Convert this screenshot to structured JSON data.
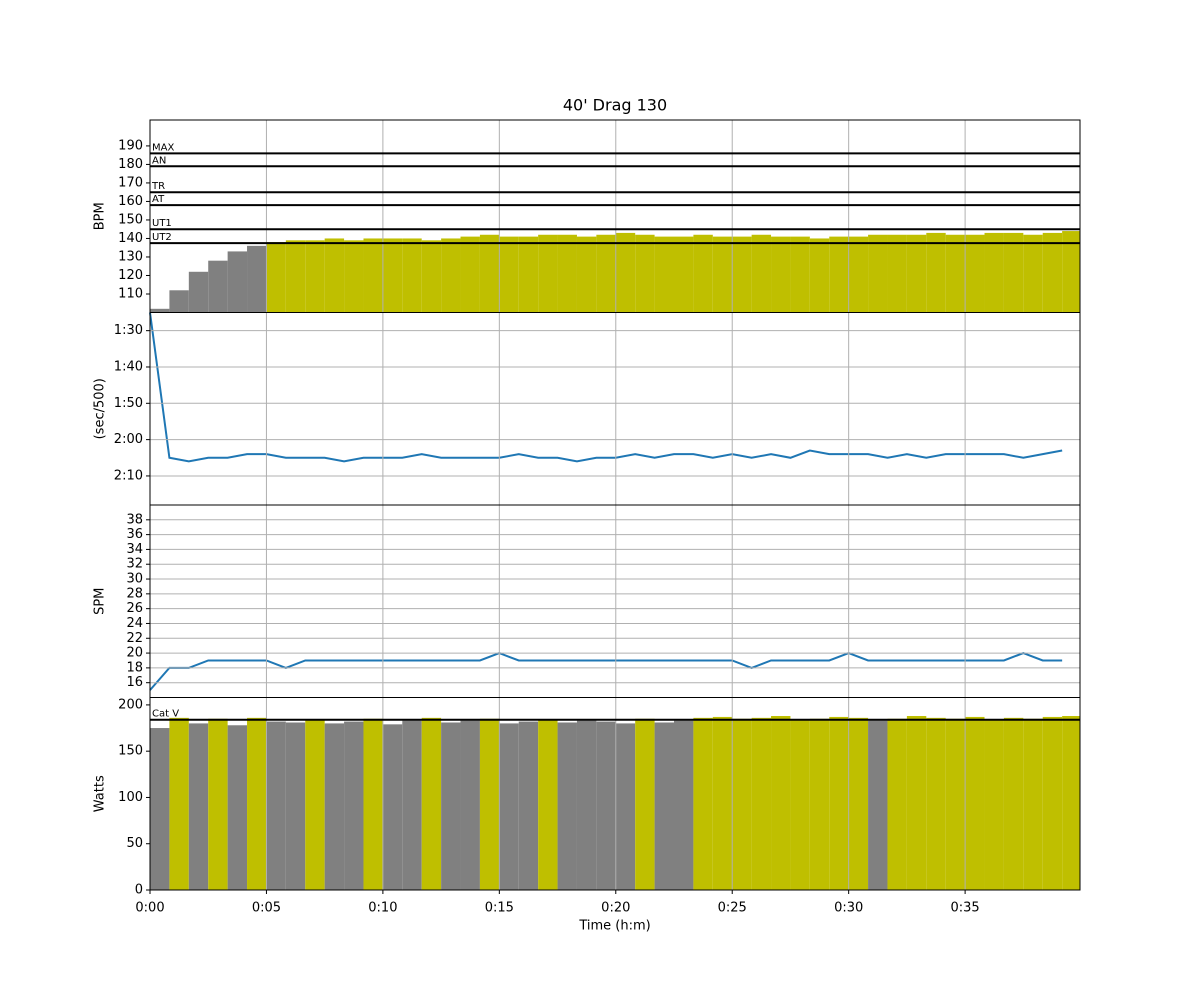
{
  "chart_data": [
    {
      "type": "bar",
      "title": "40' Drag 130",
      "ylabel": "BPM",
      "ylim": [
        100,
        204
      ],
      "yticks": [
        110,
        120,
        130,
        140,
        150,
        160,
        170,
        180,
        190
      ],
      "xlim": [
        0,
        2396
      ],
      "xticks": [
        {
          "value": 0,
          "label": "0:00"
        },
        {
          "value": 300,
          "label": "0:05"
        },
        {
          "value": 600,
          "label": "0:10"
        },
        {
          "value": 900,
          "label": "0:15"
        },
        {
          "value": 1200,
          "label": "0:20"
        },
        {
          "value": 1500,
          "label": "0:25"
        },
        {
          "value": 1800,
          "label": "0:30"
        },
        {
          "value": 2100,
          "label": "0:35"
        }
      ],
      "grid": "x",
      "color_below": "#808080",
      "color_above": "#bfbf00",
      "threshold_zone": 0,
      "zones": [
        {
          "name": "UT2",
          "value": 137.5
        },
        {
          "name": "UT1",
          "value": 145
        },
        {
          "name": "AT",
          "value": 158
        },
        {
          "name": "TR",
          "value": 165
        },
        {
          "name": "AN",
          "value": 179
        },
        {
          "name": "MAX",
          "value": 186
        }
      ],
      "x": [
        0,
        50,
        100,
        150,
        200,
        250,
        300,
        350,
        400,
        450,
        500,
        550,
        600,
        650,
        700,
        750,
        800,
        850,
        900,
        950,
        1000,
        1050,
        1100,
        1150,
        1200,
        1250,
        1300,
        1350,
        1400,
        1450,
        1500,
        1550,
        1600,
        1650,
        1700,
        1750,
        1800,
        1850,
        1900,
        1950,
        2000,
        2050,
        2100,
        2150,
        2200,
        2250,
        2300,
        2350
      ],
      "values": [
        102,
        112,
        122,
        128,
        133,
        136,
        138,
        139,
        139,
        140,
        139,
        140,
        140,
        140,
        139,
        140,
        141,
        142,
        141,
        141,
        142,
        142,
        141,
        142,
        143,
        142,
        141,
        141,
        142,
        141,
        141,
        142,
        141,
        141,
        140,
        141,
        141,
        142,
        142,
        142,
        143,
        142,
        142,
        143,
        143,
        142,
        143,
        144
      ]
    },
    {
      "type": "line",
      "ylabel": "(sec/500)",
      "ylim": [
        138,
        85
      ],
      "yticks": [
        {
          "value": 90,
          "label": "1:30"
        },
        {
          "value": 100,
          "label": "1:40"
        },
        {
          "value": 110,
          "label": "1:50"
        },
        {
          "value": 120,
          "label": "2:00"
        },
        {
          "value": 130,
          "label": "2:10"
        }
      ],
      "xlim": [
        0,
        2396
      ],
      "xticks": [
        0,
        300,
        600,
        900,
        1200,
        1500,
        1800,
        2100
      ],
      "grid": "both",
      "color": "#1f77b4",
      "x": [
        0,
        50,
        100,
        150,
        200,
        250,
        300,
        350,
        400,
        450,
        500,
        550,
        600,
        650,
        700,
        750,
        800,
        850,
        900,
        950,
        1000,
        1050,
        1100,
        1150,
        1200,
        1250,
        1300,
        1350,
        1400,
        1450,
        1500,
        1550,
        1600,
        1650,
        1700,
        1750,
        1800,
        1850,
        1900,
        1950,
        2000,
        2050,
        2100,
        2150,
        2200,
        2250,
        2300,
        2350
      ],
      "values": [
        85,
        125,
        126,
        125,
        125,
        124,
        124,
        125,
        125,
        125,
        126,
        125,
        125,
        125,
        124,
        125,
        125,
        125,
        125,
        124,
        125,
        125,
        126,
        125,
        125,
        124,
        125,
        124,
        124,
        125,
        124,
        125,
        124,
        125,
        123,
        124,
        124,
        124,
        125,
        124,
        125,
        124,
        124,
        124,
        124,
        125,
        124,
        123
      ]
    },
    {
      "type": "line",
      "ylabel": "SPM",
      "ylim": [
        14,
        40
      ],
      "yticks": [
        16,
        18,
        20,
        22,
        24,
        26,
        28,
        30,
        32,
        34,
        36,
        38
      ],
      "xlim": [
        0,
        2396
      ],
      "xticks": [
        0,
        300,
        600,
        900,
        1200,
        1500,
        1800,
        2100
      ],
      "grid": "both",
      "color": "#1f77b4",
      "x": [
        0,
        50,
        100,
        150,
        200,
        250,
        300,
        350,
        400,
        450,
        500,
        550,
        600,
        650,
        700,
        750,
        800,
        850,
        900,
        950,
        1000,
        1050,
        1100,
        1150,
        1200,
        1250,
        1300,
        1350,
        1400,
        1450,
        1500,
        1550,
        1600,
        1650,
        1700,
        1750,
        1800,
        1850,
        1900,
        1950,
        2000,
        2050,
        2100,
        2150,
        2200,
        2250,
        2300,
        2350
      ],
      "values": [
        15,
        18,
        18,
        19,
        19,
        19,
        19,
        18,
        19,
        19,
        19,
        19,
        19,
        19,
        19,
        19,
        19,
        19,
        20,
        19,
        19,
        19,
        19,
        19,
        19,
        19,
        19,
        19,
        19,
        19,
        19,
        18,
        19,
        19,
        19,
        19,
        20,
        19,
        19,
        19,
        19,
        19,
        19,
        19,
        19,
        20,
        19,
        19
      ]
    },
    {
      "type": "bar",
      "ylabel": "Watts",
      "xlabel": "Time (h:m)",
      "ylim": [
        0,
        208
      ],
      "yticks": [
        0,
        50,
        100,
        150,
        200
      ],
      "xlim": [
        0,
        2396
      ],
      "xticks": [
        {
          "value": 0,
          "label": "0:00"
        },
        {
          "value": 300,
          "label": "0:05"
        },
        {
          "value": 600,
          "label": "0:10"
        },
        {
          "value": 900,
          "label": "0:15"
        },
        {
          "value": 1200,
          "label": "0:20"
        },
        {
          "value": 1500,
          "label": "0:25"
        },
        {
          "value": 1800,
          "label": "0:30"
        },
        {
          "value": 2100,
          "label": "0:35"
        }
      ],
      "grid": "x",
      "color_below": "#808080",
      "color_above": "#bfbf00",
      "threshold_zone": 0,
      "zones": [
        {
          "name": "Cat V",
          "value": 184
        }
      ],
      "x": [
        0,
        50,
        100,
        150,
        200,
        250,
        300,
        350,
        400,
        450,
        500,
        550,
        600,
        650,
        700,
        750,
        800,
        850,
        900,
        950,
        1000,
        1050,
        1100,
        1150,
        1200,
        1250,
        1300,
        1350,
        1400,
        1450,
        1500,
        1550,
        1600,
        1650,
        1700,
        1750,
        1800,
        1850,
        1900,
        1950,
        2000,
        2050,
        2100,
        2150,
        2200,
        2250,
        2300,
        2350
      ],
      "values": [
        175,
        186,
        180,
        185,
        178,
        186,
        182,
        181,
        184,
        180,
        182,
        185,
        179,
        183,
        186,
        181,
        183,
        185,
        180,
        182,
        184,
        181,
        183,
        182,
        180,
        185,
        181,
        183,
        186,
        187,
        185,
        186,
        188,
        184,
        185,
        187,
        186,
        183,
        185,
        188,
        186,
        185,
        187,
        184,
        186,
        185,
        187,
        188
      ]
    }
  ]
}
